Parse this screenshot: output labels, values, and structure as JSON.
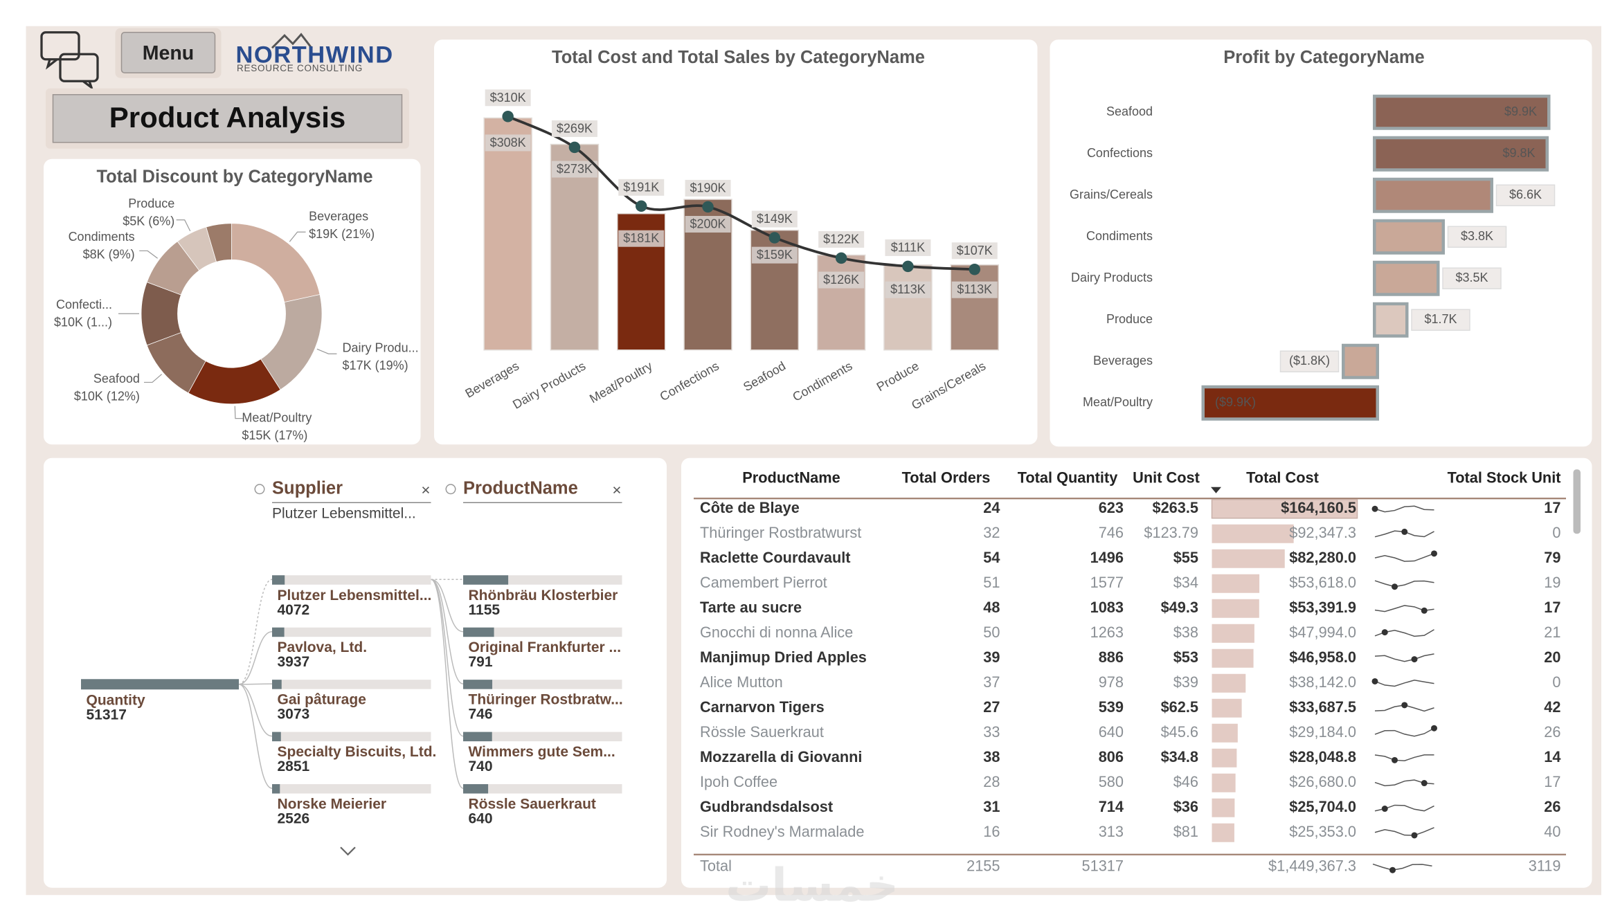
{
  "header": {
    "menu": "Menu",
    "logo": "NORTHWIND",
    "logo_tagline": "RESOURCE CONSULTING",
    "title": "Product Analysis"
  },
  "chart_data": [
    {
      "type": "donut",
      "title": "Total Discount by CategoryName",
      "categories": [
        "Beverages",
        "Dairy Produ...",
        "Meat/Poultry",
        "Seafood",
        "Confecti...",
        "Condiments",
        "Produce",
        null
      ],
      "values": [
        19,
        17,
        15,
        10,
        10,
        8,
        5,
        4
      ],
      "value_labels": [
        "$19K (21%)",
        "$17K (19%)",
        "$15K (17%)",
        "$10K (12%)",
        "$10K (1...)",
        "$8K (9%)",
        "$5K (6%)",
        null
      ],
      "colors": [
        "#cfae9f",
        "#bcaaa0",
        "#7a2a10",
        "#8d6c5c",
        "#7e5c4d",
        "#b99e90",
        "#d6c5bb",
        "#9c7b69"
      ]
    },
    {
      "type": "combo",
      "title": "Total Cost and Total Sales by CategoryName",
      "categories": [
        "Beverages",
        "Dairy Products",
        "Meat/Poultry",
        "Confections",
        "Seafood",
        "Condiments",
        "Produce",
        "Grains/Cereals"
      ],
      "series": [
        {
          "type": "bar",
          "colors": [
            "#d3b2a3",
            "#c4afa4",
            "#7a2a10",
            "#8c6b5b",
            "#8f6f60",
            "#c9aea3",
            "#d8c6bc",
            "#a88a7c"
          ],
          "values": [
            308,
            273,
            181,
            200,
            159,
            126,
            113,
            113
          ],
          "value_labels": [
            "$308K",
            "$273K",
            "$181K",
            "$200K",
            "$159K",
            "$126K",
            "$113K",
            "$113K"
          ]
        },
        {
          "type": "line",
          "color": "#2f5857",
          "values": [
            310,
            269,
            191,
            190,
            149,
            122,
            111,
            107
          ],
          "value_labels": [
            "$310K",
            "$269K",
            "$191K",
            "$190K",
            "$149K",
            "$122K",
            "$111K",
            "$107K"
          ]
        }
      ]
    },
    {
      "type": "hbar",
      "title": "Profit by CategoryName",
      "categories": [
        "Seafood",
        "Confections",
        "Grains/Cereals",
        "Condiments",
        "Dairy Products",
        "Produce",
        "Beverages",
        "Meat/Poultry"
      ],
      "values": [
        9.9,
        9.8,
        6.6,
        3.8,
        3.5,
        1.7,
        -1.8,
        -9.9
      ],
      "value_labels": [
        "$9.9K",
        "$9.8K",
        "$6.6K",
        "$3.8K",
        "$3.5K",
        "$1.7K",
        "($1.8K)",
        "($9.9K)"
      ],
      "colors": [
        "#8b6355",
        "#8b6355",
        "#b08878",
        "#c9a898",
        "#c9a898",
        "#dcc8be",
        "#c9a898",
        "#7a2a10"
      ]
    }
  ],
  "decomposition_tree": {
    "root": {
      "label": "Quantity",
      "value": 51317
    },
    "levels": [
      {
        "label": "Supplier",
        "selected": "Plutzer Lebensmittel...",
        "nodes": [
          {
            "label": "Plutzer Lebensmittel...",
            "value": 4072
          },
          {
            "label": "Pavlova, Ltd.",
            "value": 3937
          },
          {
            "label": "Gai pâturage",
            "value": 3073
          },
          {
            "label": "Specialty Biscuits, Ltd.",
            "value": 2851
          },
          {
            "label": "Norske Meierier",
            "value": 2526
          }
        ]
      },
      {
        "label": "ProductName",
        "nodes": [
          {
            "label": "Rhönbräu Klosterbier",
            "value": 1155
          },
          {
            "label": "Original Frankfurter ...",
            "value": 791
          },
          {
            "label": "Thüringer Rostbratw...",
            "value": 746
          },
          {
            "label": "Wimmers gute Sem...",
            "value": 740
          },
          {
            "label": "Rössle Sauerkraut",
            "value": 640
          }
        ]
      }
    ]
  },
  "table": {
    "columns": [
      "ProductName",
      "Total Orders",
      "Total Quantity",
      "Unit Cost",
      "Total Cost",
      "Total Stock Unit"
    ],
    "rows": [
      {
        "product": "Côte de Blaye",
        "orders": 24,
        "quantity": 623,
        "unit_cost": "$263.5",
        "total_cost": 164160.5,
        "total_cost_label": "$164,160.5",
        "stock": 17
      },
      {
        "product": "Thüringer Rostbratwurst",
        "orders": 32,
        "quantity": 746,
        "unit_cost": "$123.79",
        "total_cost": 92347.3,
        "total_cost_label": "$92,347.3",
        "stock": 0
      },
      {
        "product": "Raclette Courdavault",
        "orders": 54,
        "quantity": 1496,
        "unit_cost": "$55",
        "total_cost": 82280.0,
        "total_cost_label": "$82,280.0",
        "stock": 79
      },
      {
        "product": "Camembert Pierrot",
        "orders": 51,
        "quantity": 1577,
        "unit_cost": "$34",
        "total_cost": 53618.0,
        "total_cost_label": "$53,618.0",
        "stock": 19
      },
      {
        "product": "Tarte au sucre",
        "orders": 48,
        "quantity": 1083,
        "unit_cost": "$49.3",
        "total_cost": 53391.9,
        "total_cost_label": "$53,391.9",
        "stock": 17
      },
      {
        "product": "Gnocchi di nonna Alice",
        "orders": 50,
        "quantity": 1263,
        "unit_cost": "$38",
        "total_cost": 47994.0,
        "total_cost_label": "$47,994.0",
        "stock": 21
      },
      {
        "product": "Manjimup Dried Apples",
        "orders": 39,
        "quantity": 886,
        "unit_cost": "$53",
        "total_cost": 46958.0,
        "total_cost_label": "$46,958.0",
        "stock": 20
      },
      {
        "product": "Alice Mutton",
        "orders": 37,
        "quantity": 978,
        "unit_cost": "$39",
        "total_cost": 38142.0,
        "total_cost_label": "$38,142.0",
        "stock": 0
      },
      {
        "product": "Carnarvon Tigers",
        "orders": 27,
        "quantity": 539,
        "unit_cost": "$62.5",
        "total_cost": 33687.5,
        "total_cost_label": "$33,687.5",
        "stock": 42
      },
      {
        "product": "Rössle Sauerkraut",
        "orders": 33,
        "quantity": 640,
        "unit_cost": "$45.6",
        "total_cost": 29184.0,
        "total_cost_label": "$29,184.0",
        "stock": 26
      },
      {
        "product": "Mozzarella di Giovanni",
        "orders": 38,
        "quantity": 806,
        "unit_cost": "$34.8",
        "total_cost": 28048.8,
        "total_cost_label": "$28,048.8",
        "stock": 14
      },
      {
        "product": "Ipoh Coffee",
        "orders": 28,
        "quantity": 580,
        "unit_cost": "$46",
        "total_cost": 26680.0,
        "total_cost_label": "$26,680.0",
        "stock": 17
      },
      {
        "product": "Gudbrandsdalsost",
        "orders": 31,
        "quantity": 714,
        "unit_cost": "$36",
        "total_cost": 25704.0,
        "total_cost_label": "$25,704.0",
        "stock": 26
      },
      {
        "product": "Sir Rodney's Marmalade",
        "orders": 16,
        "quantity": 313,
        "unit_cost": "$81",
        "total_cost": 25353.0,
        "total_cost_label": "$25,353.0",
        "stock": 40
      }
    ],
    "total": {
      "label": "Total",
      "orders": 2155,
      "quantity": 51317,
      "total_cost_label": "$1,449,367.3",
      "stock": 3119
    }
  },
  "watermark": "خمسات"
}
